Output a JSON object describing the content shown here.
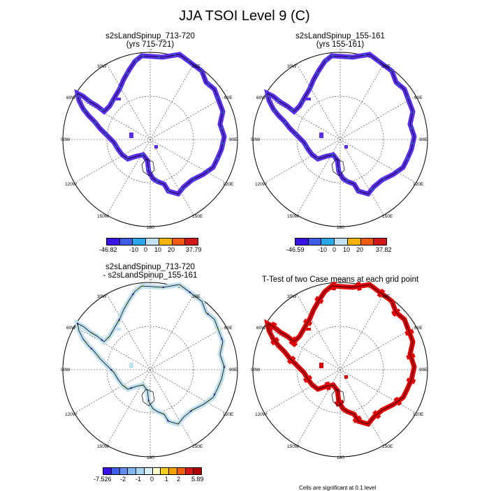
{
  "title": "JJA TSOI Level 9 (C)",
  "panels": [
    {
      "title_line1": "s2sLandSpinup_713-720",
      "title_line2": "(yrs 715-721)"
    },
    {
      "title_line1": "s2sLandSpinup_155-161",
      "title_line2": "(yrs 155-161)"
    },
    {
      "title_line1": "s2sLandSpinup_713-720",
      "title_line2": "- s2sLandSpinup_155-161"
    },
    {
      "title_line1": "T-Test of two Case means at each grid point",
      "title_line2": ""
    }
  ],
  "map_labels": {
    "lon_0": "0",
    "lon_30e": "30E",
    "lon_60e": "60E",
    "lon_90e": "90E",
    "lon_120e": "120E",
    "lon_150e": "150E",
    "lon_180": "180",
    "lon_150w": "150W",
    "lon_120w": "120W",
    "lon_90w": "90W",
    "lon_60w": "60W",
    "lon_30w": "30W"
  },
  "colorbars": {
    "abs": {
      "colors": [
        "#3a12e6",
        "#3f5ee8",
        "#2aa6e8",
        "#bfe3f0",
        "#f6b400",
        "#f05a10",
        "#d01818"
      ],
      "panel1_ticks": [
        "-46.82",
        "-10",
        "0",
        "10",
        "20",
        "37.79"
      ],
      "panel2_ticks": [
        "-46.59",
        "-10",
        "0",
        "10",
        "20",
        "37.82"
      ]
    },
    "diff": {
      "colors": [
        "#3a12e6",
        "#3f5ee8",
        "#5f8ef0",
        "#7fb6f0",
        "#a9d6f0",
        "#d8eef5",
        "#fffacc",
        "#f6d020",
        "#f5a000",
        "#f06010",
        "#d81818",
        "#b00000"
      ],
      "ticks": [
        "-7.526",
        "-2",
        "-1",
        "0",
        "1",
        "2",
        "5.89"
      ]
    }
  },
  "footnote": "Cells are significant at 0.1 level"
}
